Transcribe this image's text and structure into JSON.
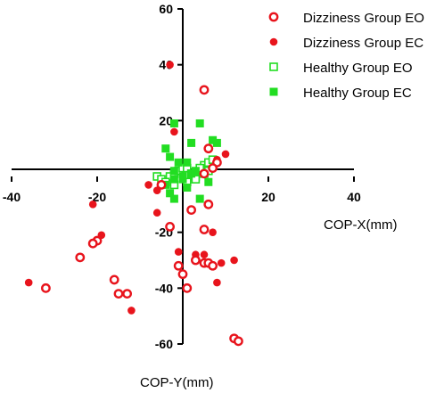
{
  "chart_data": {
    "type": "scatter",
    "xlabel": "COP-X(mm)",
    "ylabel": "COP-Y(mm)",
    "xlim": [
      -40,
      40
    ],
    "ylim": [
      -60,
      60
    ],
    "x_ticks": [
      "-40",
      "-20",
      "20",
      "40"
    ],
    "y_ticks": [
      "60",
      "40",
      "20",
      "-20",
      "-40",
      "-60"
    ],
    "grid": false,
    "legend_position": "top-right",
    "series": [
      {
        "name": "Dizziness Group EO",
        "color": "#e8141c",
        "marker": "open-circle",
        "points": [
          [
            5,
            31
          ],
          [
            6,
            10
          ],
          [
            8,
            5
          ],
          [
            7,
            3
          ],
          [
            5,
            1
          ],
          [
            -5,
            -3
          ],
          [
            2,
            -12
          ],
          [
            6,
            -10
          ],
          [
            -3,
            -18
          ],
          [
            5,
            -19
          ],
          [
            -20,
            -23
          ],
          [
            -21,
            -24
          ],
          [
            -24,
            -29
          ],
          [
            -16,
            -37
          ],
          [
            -15,
            -42
          ],
          [
            -32,
            -40
          ],
          [
            -13,
            -42
          ],
          [
            3,
            -30
          ],
          [
            -1,
            -32
          ],
          [
            0,
            -35
          ],
          [
            1,
            -40
          ],
          [
            5,
            -31
          ],
          [
            6,
            -31
          ],
          [
            7,
            -32
          ],
          [
            12,
            -58
          ],
          [
            13,
            -59
          ]
        ]
      },
      {
        "name": "Dizziness Group EC",
        "color": "#e8141c",
        "marker": "filled-circle",
        "points": [
          [
            -3,
            40
          ],
          [
            -2,
            16
          ],
          [
            10,
            8
          ],
          [
            8,
            6
          ],
          [
            -21,
            -10
          ],
          [
            -19,
            -21
          ],
          [
            -8,
            -3
          ],
          [
            -6,
            -13
          ],
          [
            7,
            -20
          ],
          [
            -1,
            -27
          ],
          [
            -36,
            -38
          ],
          [
            -12,
            -48
          ],
          [
            3,
            -28
          ],
          [
            5,
            -28
          ],
          [
            9,
            -31
          ],
          [
            8,
            -38
          ],
          [
            12,
            -30
          ],
          [
            -6,
            -5
          ]
        ]
      },
      {
        "name": "Healthy Group EO",
        "color": "#22dd22",
        "marker": "open-square",
        "points": [
          [
            -6,
            0
          ],
          [
            -5,
            -1
          ],
          [
            -3,
            0
          ],
          [
            -2,
            1
          ],
          [
            -4,
            -2
          ],
          [
            -1,
            2
          ],
          [
            0,
            3
          ],
          [
            1,
            3
          ],
          [
            2,
            1
          ],
          [
            3,
            0
          ],
          [
            4,
            2
          ],
          [
            5,
            4
          ],
          [
            6,
            5
          ],
          [
            7,
            6
          ],
          [
            -2,
            -3
          ],
          [
            1,
            -2
          ],
          [
            3,
            -1
          ],
          [
            5,
            1
          ],
          [
            6,
            2
          ],
          [
            4,
            3
          ]
        ]
      },
      {
        "name": "Healthy Group EC",
        "color": "#22dd22",
        "marker": "filled-square",
        "points": [
          [
            -2,
            19
          ],
          [
            2,
            12
          ],
          [
            4,
            19
          ],
          [
            7,
            13
          ],
          [
            8,
            12
          ],
          [
            -4,
            10
          ],
          [
            -3,
            7
          ],
          [
            -1,
            5
          ],
          [
            1,
            5
          ],
          [
            -2,
            2
          ],
          [
            0,
            0
          ],
          [
            2,
            1
          ],
          [
            3,
            2
          ],
          [
            -4,
            -3
          ],
          [
            -3,
            -6
          ],
          [
            -2,
            -8
          ],
          [
            0,
            -1
          ],
          [
            1,
            -4
          ],
          [
            4,
            -8
          ],
          [
            6,
            -2
          ],
          [
            -2,
            -1
          ]
        ]
      }
    ]
  }
}
